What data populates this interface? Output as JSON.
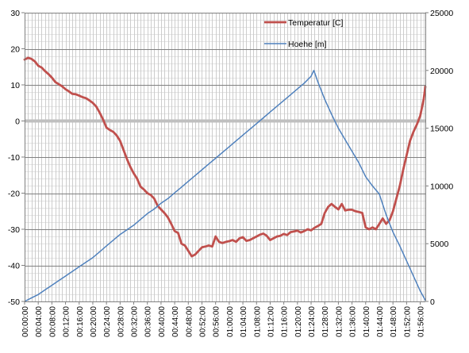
{
  "chart_data": {
    "type": "line",
    "title": "",
    "xlabel": "",
    "ylabel": "",
    "y2label": "",
    "x_tick_labels": [
      "00:00:00",
      "00:04:00",
      "00:08:00",
      "00:12:00",
      "00:16:00",
      "00:20:00",
      "00:24:00",
      "00:28:00",
      "00:32:00",
      "00:36:00",
      "00:40:00",
      "00:44:00",
      "00:48:00",
      "00:52:00",
      "00:56:00",
      "01:00:00",
      "01:04:00",
      "01:08:00",
      "01:12:00",
      "01:16:00",
      "01:20:00",
      "01:24:00",
      "01:28:00",
      "01:32:00",
      "01:36:00",
      "01:40:00",
      "01:44:00",
      "01:48:00",
      "01:52:00",
      "01:56:00"
    ],
    "ylim": [
      -50,
      30
    ],
    "y_ticks": [
      -50,
      -40,
      -30,
      -20,
      -10,
      0,
      10,
      20,
      30
    ],
    "y2lim": [
      0,
      25000
    ],
    "y2_ticks": [
      0,
      5000,
      10000,
      15000,
      20000,
      25000
    ],
    "xlim_minutes": [
      0,
      117.5
    ],
    "grid": true,
    "legend_position": "top-right",
    "series": [
      {
        "name": "Temperatur [C]",
        "axis": "left",
        "color": "#c0504d",
        "x_minutes": [
          0,
          1,
          2,
          3,
          4,
          5,
          6,
          7,
          8,
          9,
          10,
          11,
          12,
          13,
          14,
          15,
          16,
          17,
          18,
          19,
          20,
          21,
          22,
          23,
          24,
          25,
          26,
          27,
          28,
          29,
          30,
          31,
          32,
          33,
          34,
          35,
          36,
          37,
          38,
          39,
          40,
          41,
          42,
          43,
          44,
          45,
          46,
          47,
          48,
          49,
          50,
          51,
          52,
          53,
          54,
          55,
          56,
          57,
          58,
          59,
          60,
          61,
          62,
          63,
          64,
          65,
          66,
          67,
          68,
          69,
          70,
          71,
          72,
          73,
          74,
          75,
          76,
          77,
          78,
          79,
          80,
          81,
          82,
          83,
          84,
          85,
          86,
          87,
          88,
          89,
          90,
          91,
          92,
          93,
          94,
          95,
          96,
          97,
          98,
          99,
          100,
          101,
          102,
          103,
          104,
          105,
          106,
          107,
          108,
          109,
          110,
          111,
          112,
          113,
          114,
          115,
          116,
          117,
          117.5
        ],
        "values": [
          17,
          17.5,
          17.2,
          16.5,
          15.3,
          14.8,
          13.8,
          13,
          12,
          10.8,
          10.2,
          9.6,
          8.8,
          8.2,
          7.5,
          7.4,
          7.0,
          6.6,
          6.3,
          5.7,
          5.0,
          4.0,
          2.3,
          0.4,
          -1.8,
          -2.5,
          -3.0,
          -4.0,
          -5.5,
          -8.0,
          -10.5,
          -12.7,
          -14.5,
          -16.0,
          -18.2,
          -19.0,
          -20.0,
          -20.5,
          -21.5,
          -23.5,
          -24.5,
          -25.5,
          -26.7,
          -28.5,
          -30.5,
          -31.0,
          -34.0,
          -34.5,
          -36.0,
          -37.5,
          -37.0,
          -36.0,
          -35.0,
          -34.8,
          -34.5,
          -34.8,
          -32.0,
          -33.5,
          -33.8,
          -33.5,
          -33.3,
          -33.0,
          -33.5,
          -32.5,
          -32.2,
          -33.2,
          -33.0,
          -32.5,
          -32.0,
          -31.5,
          -31.2,
          -31.8,
          -33.0,
          -32.5,
          -32.0,
          -31.8,
          -31.3,
          -31.6,
          -30.8,
          -30.6,
          -30.4,
          -30.9,
          -30.5,
          -30.0,
          -30.3,
          -29.6,
          -29.1,
          -28.5,
          -25.5,
          -23.8,
          -23.0,
          -23.8,
          -24.5,
          -23.0,
          -24.8,
          -24.6,
          -24.6,
          -25.0,
          -25.2,
          -25.5,
          -29.5,
          -30.0,
          -29.5,
          -30.0,
          -28.5,
          -27.0,
          -28.5,
          -27.5,
          -25.0,
          -21.5,
          -18.0,
          -13.5,
          -9.5,
          -5.5,
          -3.0,
          -1.0,
          1.5,
          6.0,
          9.5
        ]
      },
      {
        "name": "Hoehe [m]",
        "axis": "right",
        "color": "#4f81bd",
        "x_minutes": [
          0,
          2,
          4,
          6,
          8,
          10,
          12,
          14,
          16,
          18,
          20,
          22,
          24,
          26,
          28,
          30,
          32,
          34,
          36,
          38,
          40,
          42,
          44,
          46,
          48,
          50,
          52,
          54,
          56,
          58,
          60,
          62,
          64,
          66,
          68,
          70,
          72,
          74,
          76,
          78,
          80,
          82,
          84,
          84.8,
          86,
          88,
          90,
          92,
          94,
          96,
          98,
          100,
          102,
          104,
          106,
          108,
          110,
          112,
          114,
          116,
          117.5
        ],
        "values": [
          0,
          300,
          600,
          1000,
          1400,
          1800,
          2200,
          2600,
          3000,
          3400,
          3800,
          4300,
          4800,
          5300,
          5800,
          6200,
          6600,
          7100,
          7600,
          8000,
          8500,
          8900,
          9400,
          9900,
          10400,
          10900,
          11400,
          11900,
          12400,
          12900,
          13400,
          13900,
          14400,
          14900,
          15400,
          15900,
          16400,
          16900,
          17400,
          17900,
          18400,
          18900,
          19500,
          20000,
          19000,
          17500,
          16200,
          15000,
          14000,
          13000,
          12000,
          10800,
          10000,
          9300,
          7500,
          6000,
          4800,
          3500,
          2200,
          900,
          100
        ]
      }
    ]
  }
}
